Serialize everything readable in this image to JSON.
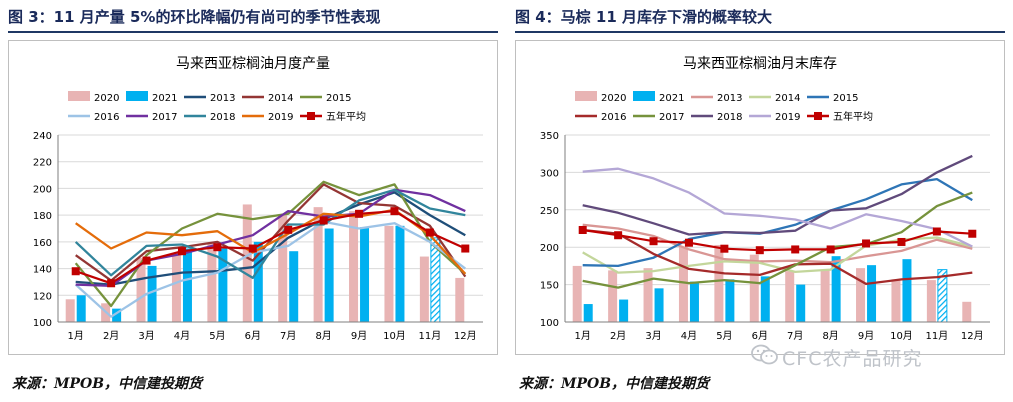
{
  "page": {
    "left_title": "图 3：11 月产量 5%的环比降幅仍有尚可的季节性表现",
    "right_title": "图 4：马棕 11 月库存下滑的概率较大",
    "left_source": "来源：MPOB，中信建投期货",
    "right_source": "来源：MPOB，中信建投期货",
    "watermark": "CFC农产品研究"
  },
  "chart_data": [
    {
      "type": "bar+line",
      "title": "马来西亚棕榈油月度产量",
      "ylim": [
        100,
        240
      ],
      "yticks": [
        100,
        120,
        140,
        160,
        180,
        200,
        220,
        240
      ],
      "categories": [
        "1月",
        "2月",
        "3月",
        "4月",
        "5月",
        "6月",
        "7月",
        "8月",
        "9月",
        "10月",
        "11月",
        "12月"
      ],
      "grid": true,
      "legend": "top",
      "bars": [
        {
          "name": "2020",
          "color": "#e8b4b4",
          "values": [
            117,
            114,
            148,
            151,
            159,
            188,
            180,
            186,
            183,
            172,
            149,
            133
          ]
        },
        {
          "name": "2021",
          "color": "#00b0f0",
          "values": [
            120,
            110,
            142,
            155,
            155,
            160,
            153,
            170,
            171,
            172,
            163,
            null
          ],
          "hatched_index": 10
        }
      ],
      "series": [
        {
          "name": "2013",
          "color": "#1f4e79",
          "values": [
            130,
            128,
            133,
            137,
            138,
            141,
            163,
            177,
            188,
            197,
            180,
            165
          ]
        },
        {
          "name": "2014",
          "color": "#943634",
          "values": [
            150,
            131,
            153,
            156,
            160,
            146,
            176,
            203,
            189,
            187,
            172,
            134
          ]
        },
        {
          "name": "2015",
          "color": "#76923c",
          "values": [
            144,
            112,
            150,
            170,
            181,
            177,
            181,
            205,
            195,
            203,
            160,
            136
          ]
        },
        {
          "name": "2016",
          "color": "#9dc3e6",
          "values": [
            128,
            104,
            121,
            131,
            137,
            152,
            157,
            175,
            170,
            174,
            160,
            140
          ]
        },
        {
          "name": "2017",
          "color": "#7030a0",
          "values": [
            128,
            127,
            146,
            151,
            158,
            165,
            183,
            179,
            181,
            199,
            195,
            183
          ]
        },
        {
          "name": "2018",
          "color": "#31859c",
          "values": [
            160,
            135,
            157,
            158,
            149,
            133,
            173,
            173,
            191,
            199,
            185,
            180
          ]
        },
        {
          "name": "2019",
          "color": "#e46c0a",
          "values": [
            174,
            155,
            167,
            165,
            168,
            152,
            166,
            181,
            179,
            184,
            165,
            136
          ]
        },
        {
          "name": "五年平均",
          "color": "#c00000",
          "marker": "square",
          "values": [
            138,
            129,
            146,
            153,
            156,
            155,
            169,
            176,
            181,
            183,
            167,
            155
          ]
        }
      ]
    },
    {
      "type": "bar+line",
      "title": "马来西亚棕榈油月末库存",
      "ylim": [
        100,
        350
      ],
      "yticks": [
        100,
        150,
        200,
        250,
        300,
        350
      ],
      "categories": [
        "1月",
        "2月",
        "3月",
        "4月",
        "5月",
        "6月",
        "7月",
        "8月",
        "9月",
        "10月",
        "11月",
        "12月"
      ],
      "grid": true,
      "legend": "top",
      "bars": [
        {
          "name": "2020",
          "color": "#e8b4b4",
          "values": [
            175,
            169,
            172,
            200,
            203,
            190,
            168,
            170,
            172,
            157,
            156,
            127
          ]
        },
        {
          "name": "2021",
          "color": "#00b0f0",
          "values": [
            124,
            130,
            145,
            154,
            157,
            161,
            150,
            188,
            176,
            184,
            170,
            null
          ],
          "hatched_index": 10
        }
      ],
      "series": [
        {
          "name": "2013",
          "color": "#d99694",
          "values": [
            230,
            225,
            215,
            197,
            184,
            181,
            182,
            180,
            188,
            195,
            210,
            198
          ]
        },
        {
          "name": "2014",
          "color": "#c3d69b",
          "values": [
            193,
            166,
            168,
            175,
            181,
            179,
            167,
            170,
            202,
            210,
            213,
            201
          ]
        },
        {
          "name": "2015",
          "color": "#2e75b6",
          "values": [
            176,
            175,
            186,
            211,
            220,
            218,
            230,
            249,
            264,
            284,
            291,
            263
          ]
        },
        {
          "name": "2016",
          "color": "#a52a2a",
          "values": [
            223,
            218,
            191,
            171,
            165,
            163,
            177,
            178,
            151,
            157,
            160,
            166
          ]
        },
        {
          "name": "2017",
          "color": "#76923c",
          "values": [
            155,
            146,
            158,
            152,
            156,
            152,
            176,
            200,
            204,
            220,
            255,
            273
          ]
        },
        {
          "name": "2018",
          "color": "#604a7b",
          "values": [
            256,
            246,
            232,
            217,
            220,
            219,
            222,
            249,
            252,
            271,
            300,
            322
          ]
        },
        {
          "name": "2019",
          "color": "#b4a7d6",
          "values": [
            301,
            305,
            292,
            273,
            245,
            242,
            237,
            225,
            244,
            235,
            224,
            201
          ]
        },
        {
          "name": "五年平均",
          "color": "#c00000",
          "marker": "square",
          "values": [
            223,
            216,
            208,
            206,
            198,
            196,
            197,
            197,
            205,
            207,
            221,
            218
          ]
        }
      ]
    }
  ]
}
